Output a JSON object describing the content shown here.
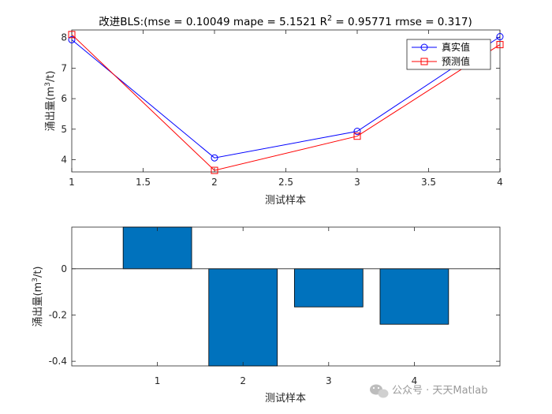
{
  "chart_data": [
    {
      "type": "line",
      "title_main": "改进BLS:(mse = 0.10049 mape = 5.1521  R",
      "title_sup": "2",
      "title_tail": " = 0.95771 rmse = 0.317)",
      "xlabel": "测试样本",
      "ylabel_pre": "涌出量(m",
      "ylabel_sup": "3",
      "ylabel_post": "/t)",
      "x": [
        1,
        2,
        3,
        4
      ],
      "xlim": [
        1,
        4
      ],
      "ylim": [
        3.6,
        8.25
      ],
      "xticks": [
        "1",
        "1.5",
        "2",
        "2.5",
        "3",
        "3.5",
        "4"
      ],
      "yticks": [
        "4",
        "5",
        "6",
        "7",
        "8"
      ],
      "series": [
        {
          "name": "真实值",
          "values": [
            7.93,
            4.06,
            4.93,
            8.03
          ],
          "color": "#0000ff",
          "marker": "circle"
        },
        {
          "name": "预测值",
          "values": [
            8.1,
            3.65,
            4.77,
            7.77
          ],
          "color": "#ff0000",
          "marker": "square"
        }
      ],
      "legend_position": "top-right",
      "grid": false
    },
    {
      "type": "bar",
      "xlabel": "测试样本",
      "ylabel_pre": "涌出量(m",
      "ylabel_sup": "3",
      "ylabel_post": "/t)",
      "categories": [
        "1",
        "2",
        "3",
        "4"
      ],
      "values": [
        0.18,
        -0.42,
        -0.165,
        -0.24
      ],
      "xlim": [
        0,
        5
      ],
      "ylim": [
        -0.42,
        0.18
      ],
      "yticks": [
        "0",
        "-0.2",
        "-0.4"
      ],
      "bar_color": "#0072bd",
      "grid": false
    }
  ],
  "watermark": {
    "text": "公众号 · 天天Matlab",
    "icon": "wechat-icon"
  }
}
